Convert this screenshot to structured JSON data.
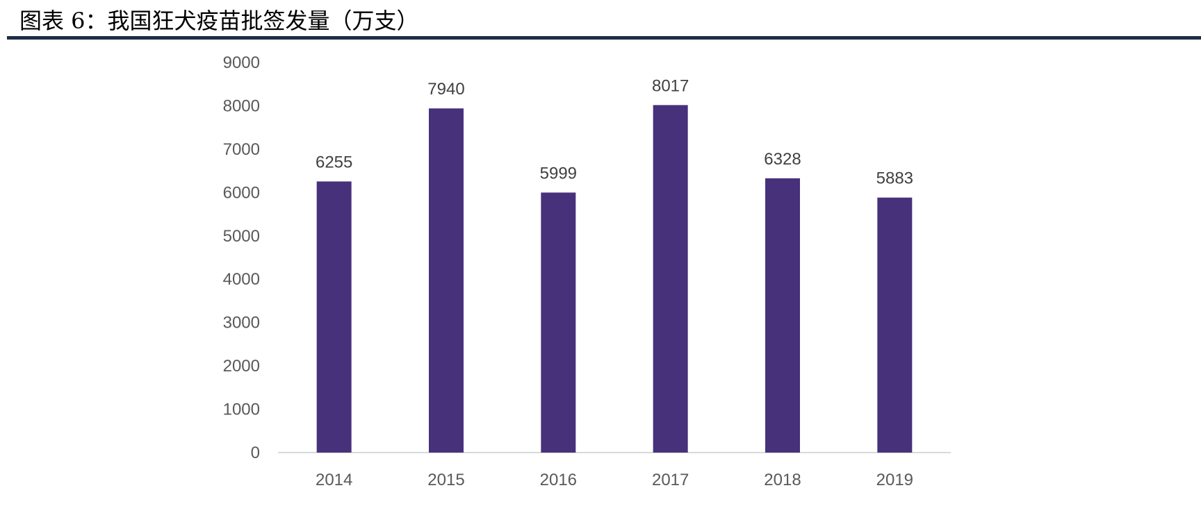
{
  "title": "图表 6：我国狂犬疫苗批签发量（万支）",
  "chart_data": {
    "type": "bar",
    "categories": [
      "2014",
      "2015",
      "2016",
      "2017",
      "2018",
      "2019"
    ],
    "values": [
      6255,
      7940,
      5999,
      8017,
      6328,
      5883
    ],
    "data_labels": [
      "6255",
      "7940",
      "5999",
      "8017",
      "6328",
      "5883"
    ],
    "y_ticks": [
      "0",
      "1000",
      "2000",
      "3000",
      "4000",
      "5000",
      "6000",
      "7000",
      "8000",
      "9000"
    ],
    "ylim": [
      0,
      9000
    ],
    "grid": false,
    "legend": "none",
    "bar_color": "#47317a",
    "axis_color": "#d9d9d9"
  }
}
